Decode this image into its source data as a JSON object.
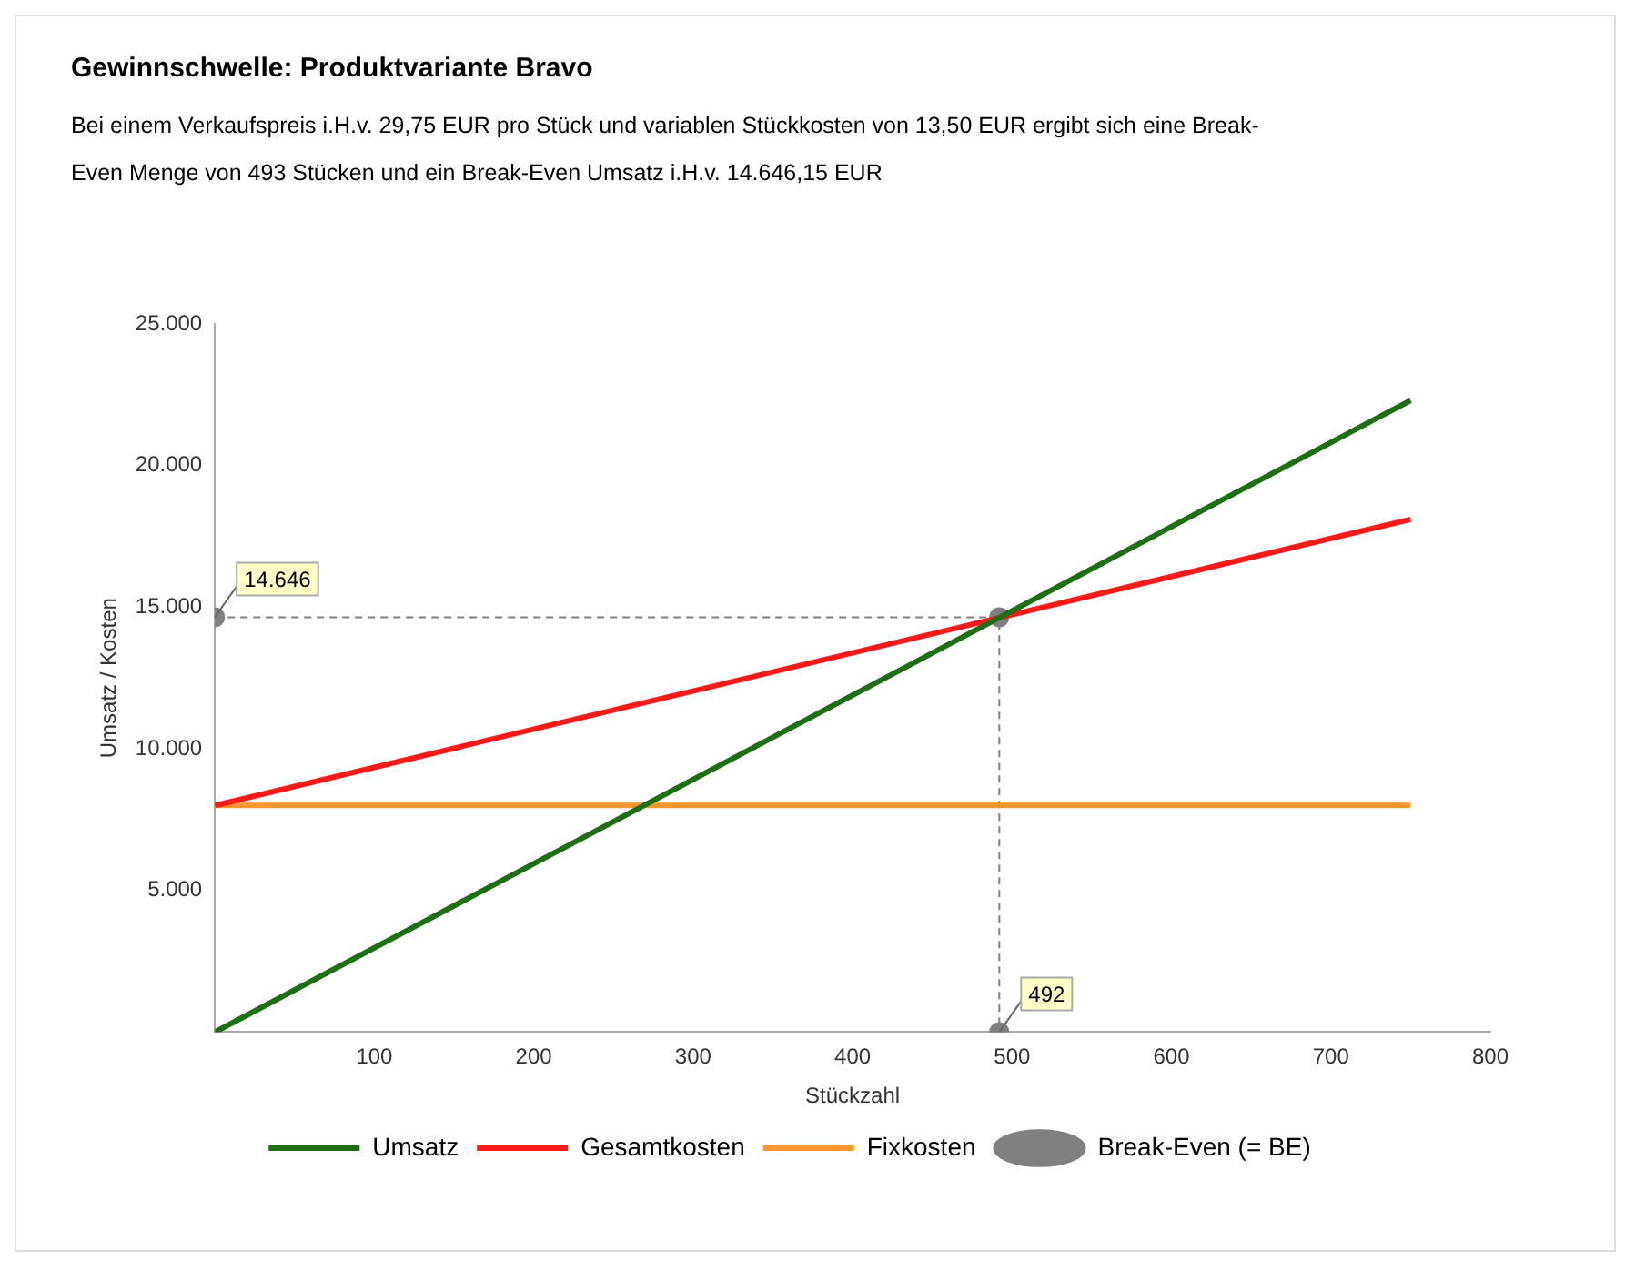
{
  "chart_data": {
    "type": "line",
    "title": "Gewinnschwelle: Produktvariante Bravo",
    "subtitle": "Bei einem Verkaufspreis i.H.v. 29,75 EUR pro Stück und variablen Stückkosten von 13,50 EUR ergibt sich eine Break-Even Menge von 493 Stücken und ein Break-Even Umsatz i.H.v. 14.646,15 EUR",
    "xlabel": "Stückzahl",
    "ylabel": "Umsatz / Kosten",
    "xlim": [
      0,
      800
    ],
    "xticks": [
      {
        "value": 0,
        "label": null
      },
      100,
      200,
      300,
      400,
      500,
      600,
      700,
      800
    ],
    "ylim": [
      0,
      25000
    ],
    "yticks": [
      {
        "value": 0,
        "label": null
      },
      {
        "value": 5000,
        "label": "5.000"
      },
      {
        "value": 10000,
        "label": "10.000"
      },
      {
        "value": 15000,
        "label": "15.000"
      },
      {
        "value": 20000,
        "label": "20.000"
      },
      {
        "value": 25000,
        "label": "25.000"
      }
    ],
    "grid": false,
    "legend": "bottom",
    "marker": "none",
    "line_style": "solid",
    "series": [
      {
        "name": "Umsatz",
        "color": "#1e6e14",
        "x": [
          0,
          750
        ],
        "values": [
          0,
          22300
        ]
      },
      {
        "name": "Gesamtkosten",
        "color": "#ff1a1a",
        "x": [
          0,
          750
        ],
        "values": [
          8000,
          18100
        ]
      },
      {
        "name": "Fixkosten",
        "color": "#f7962c",
        "x": [
          0,
          750
        ],
        "values": [
          8000,
          8000
        ]
      },
      {
        "name": "Break-Even (= BE)",
        "color": "#808080",
        "x": [
          0,
          492,
          492
        ],
        "values": [
          14646,
          14646,
          0
        ],
        "marker": "circle",
        "line_style": "dashed"
      }
    ],
    "annotations": [
      {
        "text": "14.646",
        "x": 0,
        "y": 14646
      },
      {
        "text": "492",
        "x": 492,
        "y": 0
      }
    ]
  }
}
